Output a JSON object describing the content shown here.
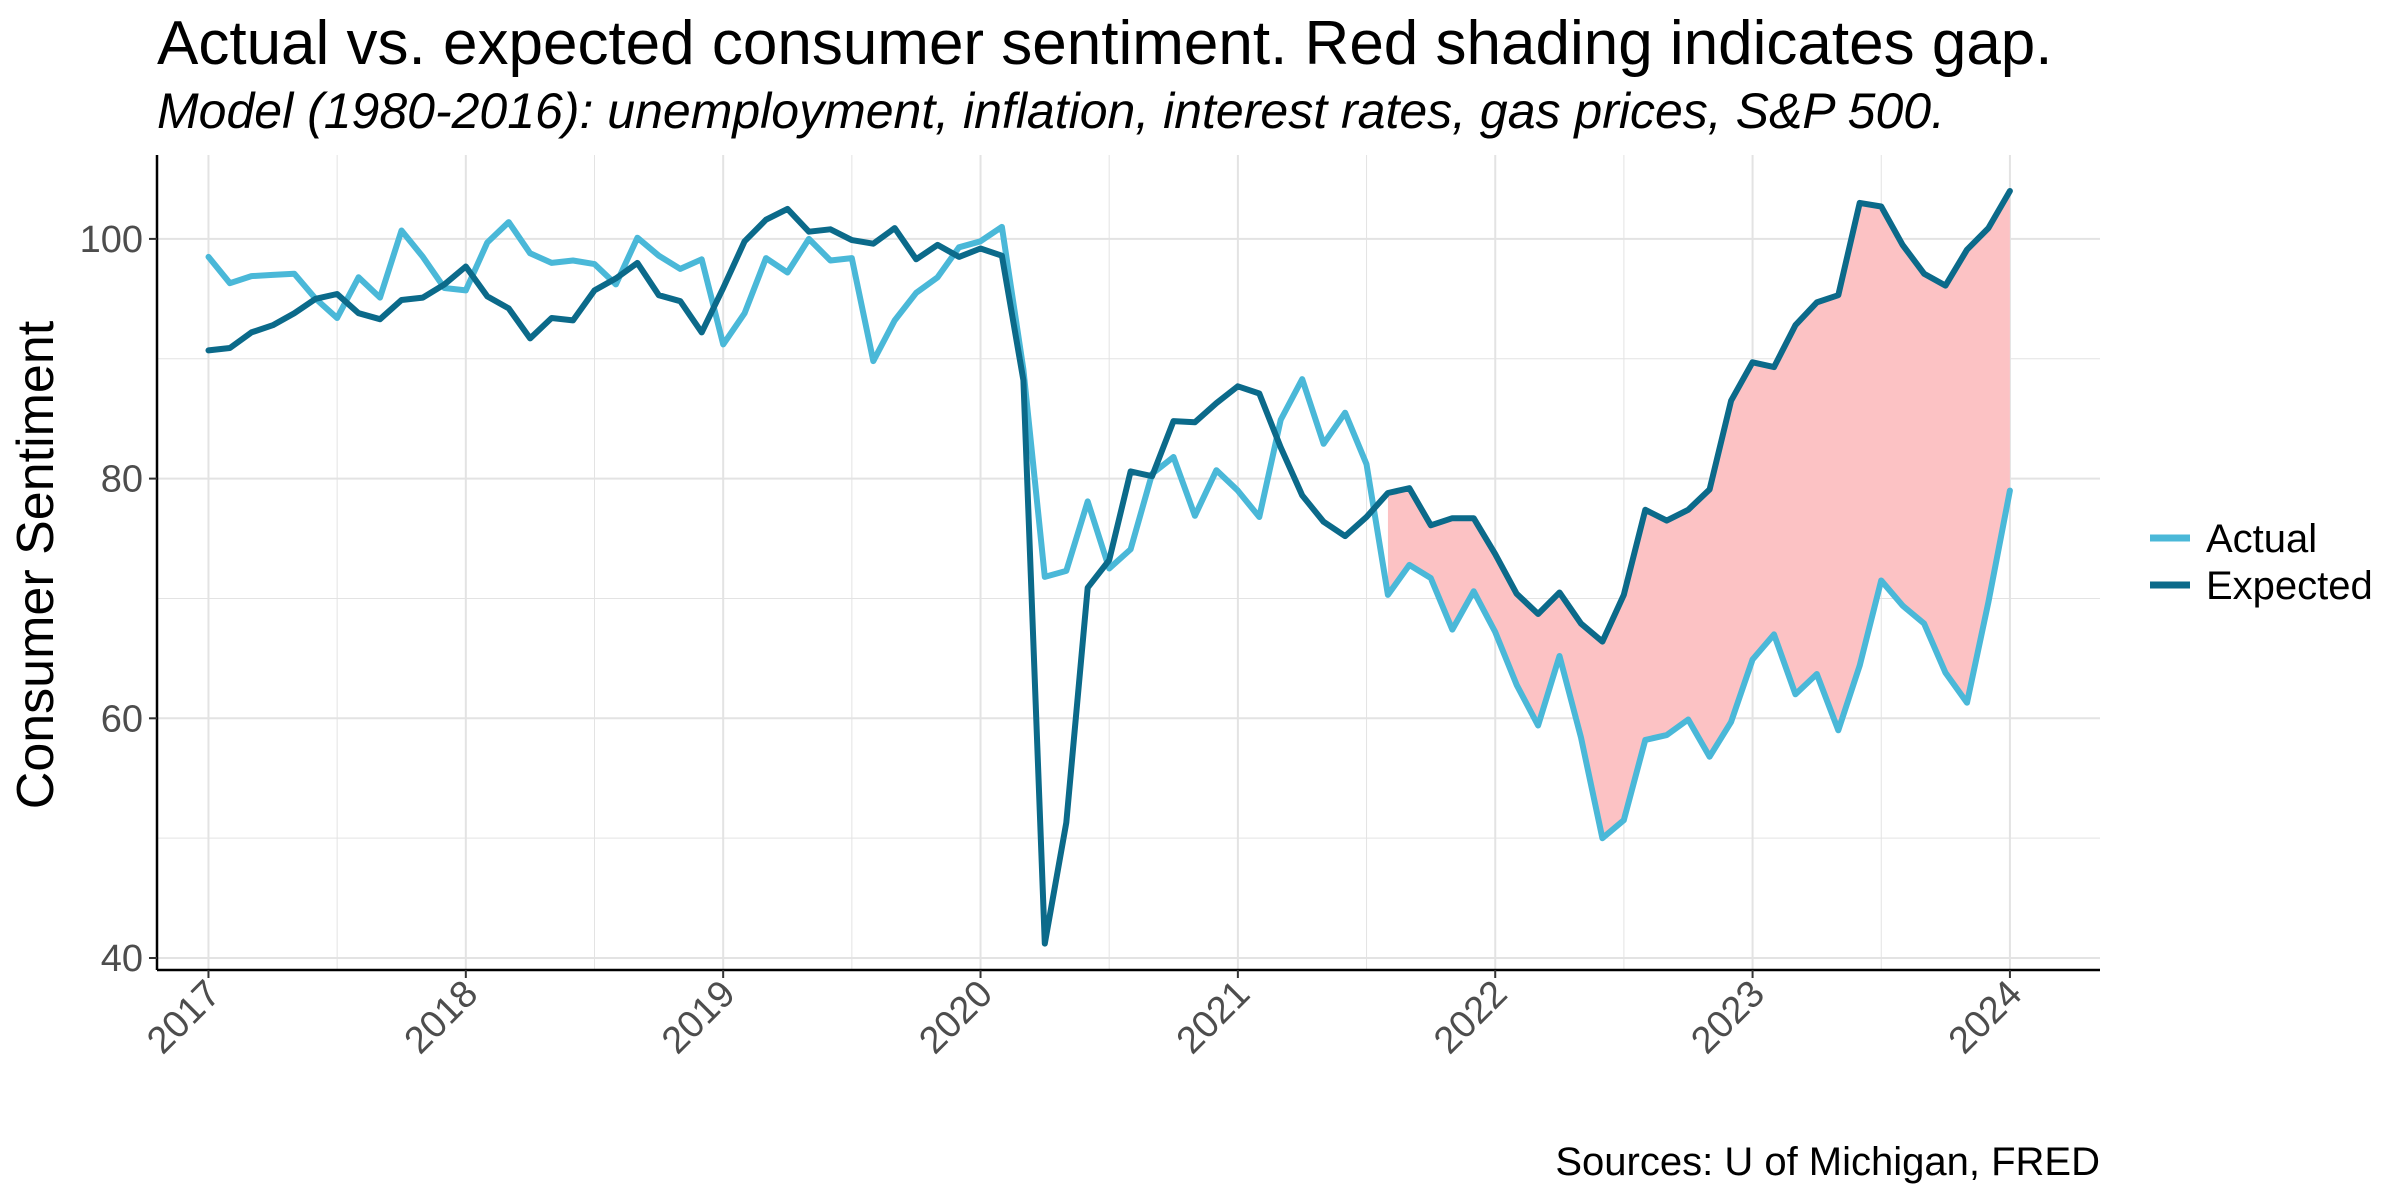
{
  "title": "Actual vs. expected consumer sentiment.  Red shading indicates gap.",
  "subtitle": "Model (1980-2016): unemployment, inflation, interest rates, gas prices, S&P 500.",
  "caption": "Sources: U of Michigan, FRED",
  "colors": {
    "actual": "#4ab8d8",
    "expected": "#0b6a8a",
    "gap": "#fcc2c4",
    "grid": "#e3e3e3",
    "axis": "#000000"
  },
  "chart_data": {
    "type": "line",
    "title": "Actual vs. expected consumer sentiment.  Red shading indicates gap.",
    "ylabel": "Consumer Sentiment",
    "xlabel": "",
    "xlim": [
      2016.8,
      2024.35
    ],
    "ylim": [
      39,
      107
    ],
    "x_ticks": [
      2017,
      2018,
      2019,
      2020,
      2021,
      2022,
      2023,
      2024
    ],
    "x_tick_labels": [
      "2017",
      "2018",
      "2019",
      "2020",
      "2021",
      "2022",
      "2023",
      "2024"
    ],
    "y_ticks": [
      40,
      60,
      80,
      100
    ],
    "y_tick_labels": [
      "40",
      "60",
      "80",
      "100"
    ],
    "x_start": 2017,
    "x_step": 0.08333,
    "legend": {
      "position": "right",
      "entries": [
        "Actual",
        "Expected"
      ]
    },
    "series": [
      {
        "name": "Actual",
        "values": [
          98.5,
          96.3,
          96.9,
          97.0,
          97.1,
          95.0,
          93.4,
          96.8,
          95.1,
          100.7,
          98.5,
          95.9,
          95.7,
          99.7,
          101.4,
          98.8,
          98.0,
          98.2,
          97.9,
          96.2,
          100.1,
          98.6,
          97.5,
          98.3,
          91.2,
          93.8,
          98.4,
          97.2,
          100.0,
          98.2,
          98.4,
          89.8,
          93.2,
          95.5,
          96.8,
          99.3,
          99.8,
          101.0,
          89.1,
          71.8,
          72.3,
          78.1,
          72.5,
          74.1,
          80.4,
          81.8,
          76.9,
          80.7,
          79.0,
          76.8,
          84.9,
          88.3,
          82.9,
          85.5,
          81.2,
          70.3,
          72.8,
          71.7,
          67.4,
          70.6,
          67.2,
          62.8,
          59.4,
          65.2,
          58.4,
          50.0,
          51.5,
          58.2,
          58.6,
          59.9,
          56.8,
          59.7,
          64.9,
          67.0,
          62.0,
          63.7,
          59.0,
          64.4,
          71.5,
          69.4,
          67.9,
          63.8,
          61.3,
          69.7,
          79.0
        ]
      },
      {
        "name": "Expected",
        "values": [
          90.7,
          90.9,
          92.2,
          92.8,
          93.8,
          95.0,
          95.4,
          93.8,
          93.3,
          94.9,
          95.1,
          96.2,
          97.7,
          95.2,
          94.2,
          91.7,
          93.4,
          93.2,
          95.7,
          96.7,
          98.0,
          95.3,
          94.8,
          92.2,
          95.9,
          99.8,
          101.6,
          102.5,
          100.6,
          100.8,
          99.9,
          99.6,
          100.9,
          98.3,
          99.5,
          98.5,
          99.2,
          98.6,
          88.2,
          41.2,
          51.3,
          70.9,
          73.2,
          80.6,
          80.2,
          84.8,
          84.7,
          86.3,
          87.7,
          87.1,
          82.6,
          78.6,
          76.4,
          75.2,
          76.8,
          78.8,
          79.2,
          76.1,
          76.7,
          76.7,
          73.7,
          70.4,
          68.7,
          70.5,
          67.9,
          66.4,
          70.3,
          77.4,
          76.5,
          77.4,
          79.1,
          86.5,
          89.7,
          89.3,
          92.8,
          94.7,
          95.3,
          103.0,
          102.7,
          99.5,
          97.1,
          96.1,
          99.1,
          100.9,
          104.0
        ]
      }
    ],
    "gap_shading": {
      "from_index": 55,
      "to_index": 84,
      "label": "gap"
    }
  }
}
